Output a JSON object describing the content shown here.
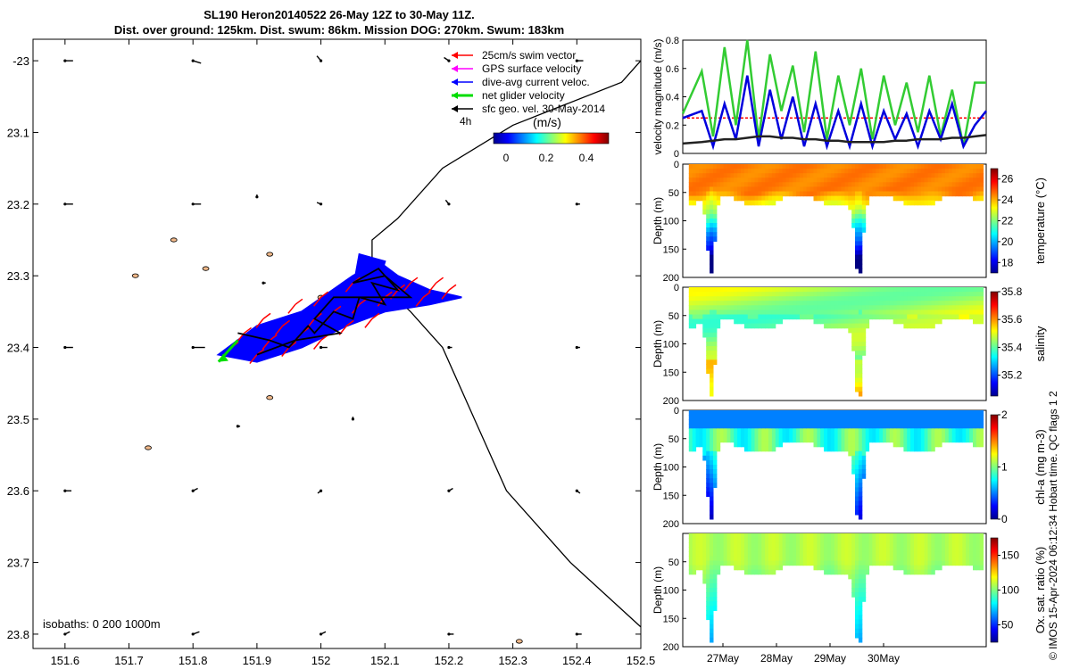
{
  "title": {
    "line1": "SL190 Heron20140522 26-May 12Z to 30-May 11Z.",
    "line2": "Dist. over ground: 125km. Dist. swum: 86km. Mission DOG: 270km. Swum: 183km"
  },
  "colors": {
    "swim": "#ff0000",
    "gps": "#ff00ff",
    "diveavg": "#0000ff",
    "net": "#00dd00",
    "sfc": "#000000",
    "patch": "#f2b98a"
  },
  "chart_data": [
    {
      "type": "map",
      "name": "trajectory-map",
      "xlim": [
        151.55,
        152.5
      ],
      "ylim": [
        23.82,
        22.97
      ],
      "xticks": [
        151.6,
        151.7,
        151.8,
        151.9,
        152,
        152.1,
        152.2,
        152.3,
        152.4,
        152.5
      ],
      "xtick_labels": [
        "151.6",
        "151.7",
        "151.8",
        "151.9",
        "152",
        "152.1",
        "152.2",
        "152.3",
        "152.4",
        "152.5"
      ],
      "yticks": [
        23.0,
        23.1,
        23.2,
        23.3,
        23.4,
        23.5,
        23.6,
        23.7,
        23.8
      ],
      "ytick_labels": [
        "-23",
        "23.1",
        "23.2",
        "23.3",
        "23.4",
        "23.5",
        "23.6",
        "23.7",
        "23.8"
      ],
      "legend": {
        "items": [
          {
            "label": "25cm/s swim vector",
            "color": "#ff0000"
          },
          {
            "label": "GPS surface velocity",
            "color": "#ff00ff"
          },
          {
            "label": "dive-avg current veloc.",
            "color": "#0000ff"
          },
          {
            "label": "net glider velocity",
            "color": "#00dd00"
          },
          {
            "label": "sfc geo. vel. 30-May-2014",
            "color": "#000000"
          }
        ],
        "duration_label": "4h",
        "colorbar_label": "(m/s)",
        "colorbar_ticks": [
          "0",
          "0.2",
          "0.4"
        ]
      },
      "isobath_text": "isobaths: 0   200  1000m",
      "isobath_line": [
        [
          152.5,
          23.0
        ],
        [
          152.47,
          23.03
        ],
        [
          152.3,
          23.09
        ],
        [
          152.19,
          23.15
        ],
        [
          152.12,
          23.22
        ],
        [
          152.08,
          23.25
        ],
        [
          152.08,
          23.28
        ],
        [
          152.08,
          23.3
        ]
      ],
      "isobath_line2": [
        [
          152.08,
          23.3
        ],
        [
          152.14,
          23.35
        ],
        [
          152.19,
          23.4
        ],
        [
          152.24,
          23.5
        ],
        [
          152.29,
          23.6
        ],
        [
          152.39,
          23.7
        ],
        [
          152.5,
          23.79
        ]
      ],
      "track": [
        [
          151.87,
          23.38
        ],
        [
          151.92,
          23.39
        ],
        [
          151.95,
          23.4
        ],
        [
          151.98,
          23.37
        ],
        [
          151.99,
          23.38
        ],
        [
          152.02,
          23.35
        ],
        [
          152.05,
          23.36
        ],
        [
          152.06,
          23.33
        ],
        [
          152.1,
          23.34
        ],
        [
          152.08,
          23.31
        ],
        [
          152.12,
          23.32
        ],
        [
          152.09,
          23.29
        ],
        [
          152.05,
          23.31
        ],
        [
          152.1,
          23.3
        ],
        [
          152.14,
          23.33
        ],
        [
          152.02,
          23.33
        ],
        [
          151.99,
          23.36
        ],
        [
          152.03,
          23.38
        ],
        [
          151.96,
          23.39
        ],
        [
          151.9,
          23.41
        ]
      ],
      "diveavg_patches": [
        [
          [
            151.84,
            23.41
          ],
          [
            151.9,
            23.37
          ],
          [
            151.97,
            23.35
          ],
          [
            152.05,
            23.3
          ],
          [
            152.09,
            23.28
          ],
          [
            152.12,
            23.3
          ],
          [
            152.17,
            23.32
          ],
          [
            152.22,
            23.33
          ],
          [
            152.17,
            23.34
          ],
          [
            152.1,
            23.35
          ],
          [
            152.04,
            23.37
          ],
          [
            151.97,
            23.4
          ],
          [
            151.9,
            23.42
          ]
        ],
        [
          [
            152.06,
            23.27
          ],
          [
            152.1,
            23.28
          ],
          [
            152.09,
            23.31
          ],
          [
            152.05,
            23.32
          ]
        ]
      ],
      "swim_arrows": [
        [
          151.86,
          23.4
        ],
        [
          151.88,
          23.38
        ],
        [
          151.9,
          23.41
        ],
        [
          151.92,
          23.39
        ],
        [
          151.94,
          23.37
        ],
        [
          151.95,
          23.4
        ],
        [
          151.97,
          23.38
        ],
        [
          151.99,
          23.36
        ],
        [
          152.0,
          23.39
        ],
        [
          152.02,
          23.35
        ],
        [
          152.04,
          23.37
        ],
        [
          152.06,
          23.34
        ],
        [
          152.08,
          23.36
        ],
        [
          152.1,
          23.33
        ],
        [
          152.12,
          23.32
        ],
        [
          152.14,
          23.31
        ],
        [
          152.16,
          23.33
        ],
        [
          152.18,
          23.31
        ],
        [
          152.2,
          23.32
        ],
        [
          151.91,
          23.36
        ],
        [
          151.96,
          23.34
        ],
        [
          152.0,
          23.33
        ],
        [
          152.05,
          23.31
        ]
      ],
      "net_vector": {
        "from": [
          151.87,
          23.39
        ],
        "to": [
          151.84,
          23.42
        ]
      },
      "sfc_vectors": [
        [
          151.6,
          23.0,
          0.01,
          0
        ],
        [
          151.8,
          23.0,
          0.01,
          -0.003
        ],
        [
          152.0,
          23.0,
          -0.005,
          0.006
        ],
        [
          152.2,
          23.0,
          -0.006,
          0.004
        ],
        [
          152.4,
          23.0,
          0.008,
          0
        ],
        [
          151.6,
          23.2,
          0.01,
          0
        ],
        [
          151.8,
          23.2,
          0.01,
          0
        ],
        [
          152.0,
          23.2,
          -0.005,
          0.002
        ],
        [
          152.2,
          23.2,
          -0.004,
          0.005
        ],
        [
          152.4,
          23.2,
          0.004,
          0
        ],
        [
          151.6,
          23.4,
          0.01,
          0
        ],
        [
          151.8,
          23.4,
          0.015,
          0
        ],
        [
          152.0,
          23.4,
          0.008,
          0
        ],
        [
          152.2,
          23.4,
          0.004,
          0
        ],
        [
          152.4,
          23.4,
          0.004,
          0
        ],
        [
          151.6,
          23.6,
          0.008,
          0
        ],
        [
          151.8,
          23.6,
          0.006,
          0.003
        ],
        [
          152.0,
          23.6,
          -0.004,
          -0.003
        ],
        [
          152.2,
          23.6,
          0.005,
          0.003
        ],
        [
          152.4,
          23.6,
          0.004,
          -0.003
        ],
        [
          151.6,
          23.8,
          0.006,
          0.003
        ],
        [
          151.8,
          23.8,
          0.008,
          0.003
        ],
        [
          152.0,
          23.8,
          0.006,
          0.003
        ],
        [
          152.2,
          23.8,
          0.006,
          0
        ],
        [
          152.4,
          23.8,
          0.006,
          0
        ],
        [
          151.9,
          23.19,
          0,
          0.003
        ],
        [
          151.91,
          23.31,
          0.003,
          0
        ],
        [
          151.87,
          23.51,
          0.003,
          0
        ],
        [
          152.05,
          23.5,
          0,
          0.003
        ]
      ],
      "islands": [
        [
          151.71,
          23.3
        ],
        [
          151.77,
          23.25
        ],
        [
          151.73,
          23.54
        ],
        [
          151.92,
          23.27
        ],
        [
          151.92,
          23.47
        ],
        [
          152.0,
          23.33
        ],
        [
          152.31,
          23.81
        ],
        [
          151.82,
          23.29
        ],
        [
          152.06,
          23.3
        ]
      ]
    },
    {
      "type": "line",
      "name": "velocity-magnitude",
      "ylabel": "velocity magnitude (m/s)",
      "ylim": [
        0,
        0.8
      ],
      "yticks": [
        "0",
        "0.2",
        "0.4",
        "0.6",
        "0.8"
      ],
      "x": [
        26.5,
        26.75,
        26.9,
        27.05,
        27.2,
        27.35,
        27.5,
        27.65,
        27.8,
        27.95,
        28.1,
        28.25,
        28.4,
        28.55,
        28.7,
        28.85,
        29.0,
        29.15,
        29.3,
        29.45,
        29.6,
        29.75,
        29.9,
        30.05,
        30.2,
        30.35,
        30.5
      ],
      "series": [
        {
          "name": "swim (red)",
          "color": "#ff0000",
          "values": [
            0.25,
            0.25,
            0.25,
            0.25,
            0.25,
            0.25,
            0.25,
            0.25,
            0.25,
            0.25,
            0.25,
            0.25,
            0.25,
            0.25,
            0.25,
            0.25,
            0.25,
            0.25,
            0.25,
            0.25,
            0.25,
            0.25,
            0.25,
            0.25,
            0.25,
            0.25,
            0.25
          ]
        },
        {
          "name": "net glider (green)",
          "color": "#33cc33",
          "values": [
            0.28,
            0.58,
            0.12,
            0.75,
            0.2,
            0.8,
            0.1,
            0.7,
            0.3,
            0.62,
            0.15,
            0.72,
            0.1,
            0.55,
            0.2,
            0.6,
            0.1,
            0.55,
            0.2,
            0.5,
            0.15,
            0.55,
            0.12,
            0.45,
            0.05,
            0.5,
            0.5
          ]
        },
        {
          "name": "dive-avg (blue)",
          "color": "#0000dd",
          "values": [
            0.25,
            0.3,
            0.05,
            0.35,
            0.1,
            0.55,
            0.05,
            0.45,
            0.1,
            0.4,
            0.05,
            0.35,
            0.05,
            0.3,
            0.05,
            0.35,
            0.05,
            0.3,
            0.1,
            0.28,
            0.05,
            0.3,
            0.1,
            0.35,
            0.05,
            0.2,
            0.3
          ]
        },
        {
          "name": "sfc geo (black)",
          "color": "#222222",
          "values": [
            0.07,
            0.08,
            0.09,
            0.1,
            0.1,
            0.11,
            0.12,
            0.12,
            0.11,
            0.11,
            0.1,
            0.1,
            0.09,
            0.09,
            0.08,
            0.08,
            0.08,
            0.08,
            0.09,
            0.09,
            0.1,
            0.1,
            0.1,
            0.11,
            0.11,
            0.12,
            0.13
          ]
        }
      ]
    },
    {
      "type": "heatmap",
      "name": "temperature-section",
      "ylabel": "Depth (m)",
      "clabel": "temperature (°C)",
      "yticks": [
        "0",
        "50",
        "100",
        "150",
        "200"
      ],
      "cticks": [
        "18",
        "20",
        "22",
        "24",
        "26"
      ],
      "crange": [
        17,
        27
      ]
    },
    {
      "type": "heatmap",
      "name": "salinity-section",
      "ylabel": "Depth (m)",
      "clabel": "salinity",
      "yticks": [
        "0",
        "50",
        "100",
        "150",
        "200"
      ],
      "cticks": [
        "35.2",
        "35.4",
        "35.6",
        "35.8"
      ],
      "crange": [
        35.05,
        35.8
      ]
    },
    {
      "type": "heatmap",
      "name": "chla-section",
      "ylabel": "Depth (m)",
      "clabel": "chl-a (mg m-3)",
      "yticks": [
        "0",
        "50",
        "100",
        "150",
        "200"
      ],
      "cticks": [
        "0",
        "1",
        "2"
      ],
      "crange": [
        0,
        2
      ]
    },
    {
      "type": "heatmap",
      "name": "oxygen-section",
      "ylabel": "Depth (m)",
      "clabel": "Ox. sat. ratio (%)",
      "yticks": [
        "50",
        "100",
        "150",
        "200"
      ],
      "cticks": [
        "50",
        "100",
        "150"
      ],
      "crange": [
        25,
        175
      ],
      "xticks": [
        "27May",
        "28May",
        "29May",
        "30May"
      ]
    }
  ],
  "side_note": "© IMOS 15-Apr-2024 06:12:34 Hobart time. QC flags 1  2"
}
